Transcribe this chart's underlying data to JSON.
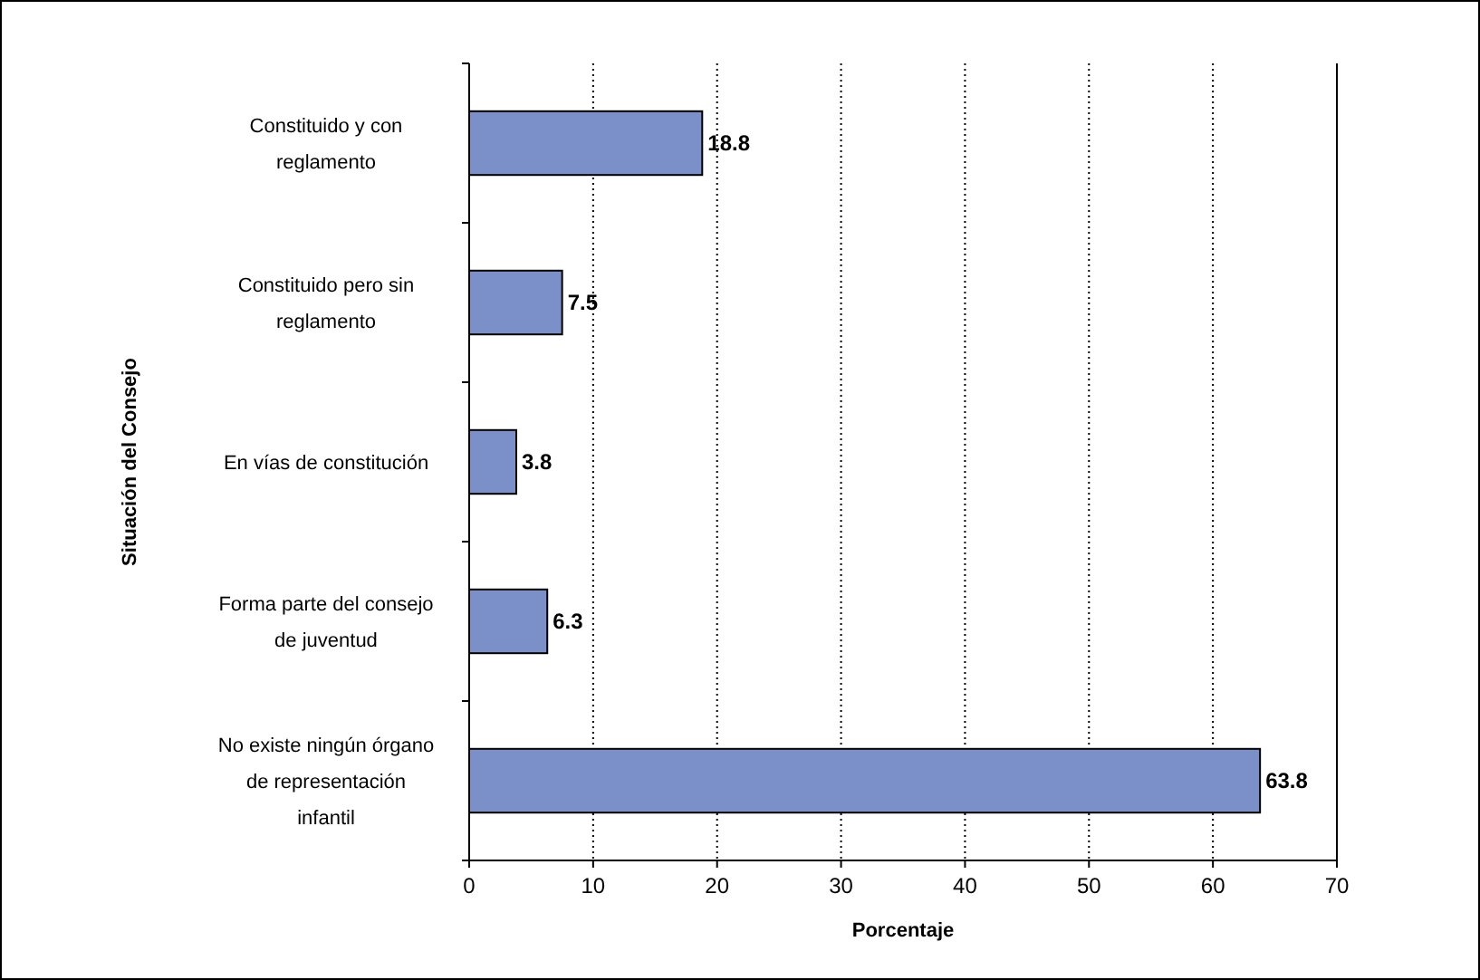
{
  "chart_data": {
    "type": "bar",
    "orientation": "horizontal",
    "xlabel": "Porcentaje",
    "ylabel": "Situación del Consejo",
    "categories": [
      "Constituido y con reglamento",
      "Constituido pero sin reglamento",
      "En vías de constitución",
      "Forma parte del consejo de juventud",
      "No existe ningún órgano de representación infantil"
    ],
    "values": [
      18.8,
      7.5,
      3.8,
      6.3,
      63.8
    ],
    "color": "#7b8fc9",
    "xlim": [
      0,
      70
    ],
    "xticks": [
      0,
      10,
      20,
      30,
      40,
      50,
      60,
      70
    ],
    "grid": "x",
    "data_labels": true
  }
}
